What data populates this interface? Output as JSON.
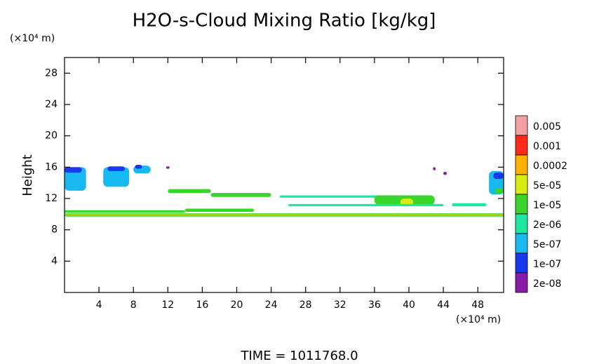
{
  "chart_data": {
    "type": "contour",
    "title": "H2O-s-Cloud Mixing Ratio [kg/kg]",
    "x_unit": "(×10⁴ m)",
    "y_unit": "(×10⁴ m)",
    "ylabel": "Height",
    "footer": "TIME = 1011768.0",
    "xlim": [
      0,
      51
    ],
    "ylim": [
      0,
      30
    ],
    "xticks": [
      4,
      8,
      12,
      16,
      20,
      24,
      28,
      32,
      36,
      40,
      44,
      48
    ],
    "yticks": [
      4,
      8,
      12,
      16,
      20,
      24,
      28
    ],
    "colorbar": {
      "levels": [
        0.005,
        0.001,
        0.0002,
        {
          "value": 5e-05,
          "label": "5e-05"
        },
        {
          "value": 1e-05,
          "label": "1e-05"
        },
        {
          "value": 2e-06,
          "label": "2e-06"
        },
        {
          "value": 5e-07,
          "label": "5e-07"
        },
        {
          "value": 1e-07,
          "label": "1e-07"
        },
        {
          "value": 2e-08,
          "label": "2e-08"
        }
      ],
      "colors": [
        "#f5a0a0",
        "#ff2a1a",
        "#ffb000",
        "#d8ec10",
        "#3ad42a",
        "#1ee8a0",
        "#18b8f0",
        "#1838f0",
        "#8a1aa8"
      ]
    },
    "regions": [
      {
        "x": [
          0,
          51
        ],
        "y": [
          9.7,
          10.1
        ],
        "value": 1e-05
      },
      {
        "x": [
          0,
          51
        ],
        "y": [
          9.85,
          9.95
        ],
        "value": 5e-05
      },
      {
        "x": [
          0,
          2.5
        ],
        "y": [
          13,
          16
        ],
        "value": 5e-07
      },
      {
        "x": [
          0,
          2
        ],
        "y": [
          15.3,
          16
        ],
        "value": 1e-07
      },
      {
        "x": [
          4.5,
          7.5
        ],
        "y": [
          13.5,
          16
        ],
        "value": 5e-07
      },
      {
        "x": [
          5,
          7
        ],
        "y": [
          15.5,
          16.1
        ],
        "value": 1e-07
      },
      {
        "x": [
          8,
          10
        ],
        "y": [
          15.2,
          16.2
        ],
        "value": 5e-07
      },
      {
        "x": [
          8.2,
          9
        ],
        "y": [
          15.8,
          16.3
        ],
        "value": 1e-07
      },
      {
        "x": [
          12,
          17
        ],
        "y": [
          12.7,
          13.2
        ],
        "value": 1e-05
      },
      {
        "x": [
          17,
          24
        ],
        "y": [
          12.2,
          12.7
        ],
        "value": 1e-05
      },
      {
        "x": [
          25,
          38
        ],
        "y": [
          12.1,
          12.4
        ],
        "value": 2e-06
      },
      {
        "x": [
          36,
          43
        ],
        "y": [
          11.2,
          12.4
        ],
        "value": 1e-05
      },
      {
        "x": [
          39,
          40.5
        ],
        "y": [
          11,
          12
        ],
        "value": 5e-05
      },
      {
        "x": [
          0,
          14
        ],
        "y": [
          10.2,
          10.5
        ],
        "value": 1e-05
      },
      {
        "x": [
          14,
          22
        ],
        "y": [
          10.3,
          10.7
        ],
        "value": 1e-05
      },
      {
        "x": [
          26,
          44
        ],
        "y": [
          11,
          11.3
        ],
        "value": 2e-06
      },
      {
        "x": [
          45,
          49
        ],
        "y": [
          11,
          11.4
        ],
        "value": 2e-06
      },
      {
        "x": [
          49.3,
          51
        ],
        "y": [
          12.5,
          15.5
        ],
        "value": 5e-07
      },
      {
        "x": [
          49.8,
          51
        ],
        "y": [
          14.5,
          15.3
        ],
        "value": 1e-07
      },
      {
        "x": [
          50,
          51
        ],
        "y": [
          12.6,
          13.3
        ],
        "value": 1e-05
      },
      {
        "x": [
          11.8,
          12.2
        ],
        "y": [
          15.8,
          16.1
        ],
        "value": 2e-08
      },
      {
        "x": [
          42.8,
          43.1
        ],
        "y": [
          15.6,
          16
        ],
        "value": 2e-08
      },
      {
        "x": [
          44,
          44.4
        ],
        "y": [
          15,
          15.4
        ],
        "value": 2e-08
      }
    ]
  }
}
